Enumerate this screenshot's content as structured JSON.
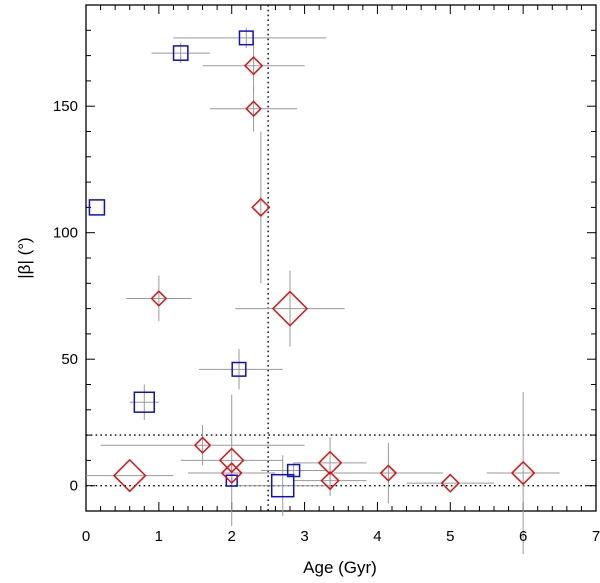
{
  "chart_data": {
    "type": "scatter",
    "xlabel": "Age  (Gyr)",
    "ylabel": "|β|  (°)",
    "xlim": [
      0,
      7
    ],
    "ylim": [
      -10,
      190
    ],
    "xticks": [
      0,
      1,
      2,
      3,
      4,
      5,
      6,
      7
    ],
    "yticks": [
      0,
      50,
      100,
      150
    ],
    "grid": false,
    "colors": {
      "squares": "#1010c8",
      "diamonds": "#dd1111",
      "errorbars": "#9a9a9a"
    },
    "reference_lines": {
      "vertical_x": [
        2.5
      ],
      "horizontal_y": [
        0,
        20
      ]
    },
    "series": [
      {
        "marker": "square",
        "points": [
          {
            "x": 1.3,
            "y": 171,
            "xerr": 0.4,
            "yerr": 4,
            "size": 0.45
          },
          {
            "x": 2.2,
            "y": 177,
            "xerr": [
              1.0,
              1.1
            ],
            "yerr": 4,
            "size": 0.4
          },
          {
            "x": 0.15,
            "y": 110,
            "xerr": 0,
            "yerr": 0,
            "size": 0.5
          },
          {
            "x": 2.1,
            "y": 46,
            "xerr": [
              0.55,
              0.6
            ],
            "yerr": 8,
            "size": 0.4
          },
          {
            "x": 0.8,
            "y": 33,
            "xerr": 0.2,
            "yerr": 7,
            "size": 0.85
          },
          {
            "x": 2.0,
            "y": 2,
            "xerr": 0,
            "yerr": 1,
            "size": 0.2
          },
          {
            "x": 2.85,
            "y": 6,
            "xerr": 0.45,
            "yerr": 3,
            "size": 0.28
          },
          {
            "x": 2.7,
            "y": 0,
            "xerr": 0.65,
            "yerr": 12,
            "size": 1.0
          }
        ]
      },
      {
        "marker": "diamond",
        "points": [
          {
            "x": 2.3,
            "y": 166,
            "xerr": 0.7,
            "yerr": 10,
            "size": 0.35
          },
          {
            "x": 2.3,
            "y": 149,
            "xerr": 0.6,
            "yerr": 9,
            "size": 0.25
          },
          {
            "x": 2.4,
            "y": 110,
            "xerr": 0,
            "yerr": [
              30,
              30
            ],
            "size": 0.35
          },
          {
            "x": 1.0,
            "y": 74,
            "xerr": 0.45,
            "yerr": 9,
            "size": 0.25
          },
          {
            "x": 2.8,
            "y": 70,
            "xerr": 0.75,
            "yerr": 15,
            "size": 1.0
          },
          {
            "x": 1.6,
            "y": 16,
            "xerr": 1.4,
            "yerr": 8,
            "size": 0.28
          },
          {
            "x": 2.0,
            "y": 10,
            "xerr": 0.7,
            "yerr": 26,
            "size": 0.6
          },
          {
            "x": 2.0,
            "y": 5,
            "xerr": 0.6,
            "yerr": 4,
            "size": 0.45
          },
          {
            "x": 0.6,
            "y": 4,
            "xerr": 0.6,
            "yerr": 0,
            "size": 0.9
          },
          {
            "x": 3.35,
            "y": 9,
            "xerr": 0.5,
            "yerr": 10,
            "size": 0.55
          },
          {
            "x": 3.35,
            "y": 2,
            "xerr": 0.5,
            "yerr": 6,
            "size": 0.35
          },
          {
            "x": 4.15,
            "y": 5,
            "xerr": 0.75,
            "yerr": 12,
            "size": 0.28
          },
          {
            "x": 5.0,
            "y": 1,
            "xerr": 0.6,
            "yerr": 0,
            "size": 0.35
          },
          {
            "x": 6.0,
            "y": 5,
            "xerr": 0.5,
            "yerr": 32,
            "size": 0.55
          }
        ]
      }
    ]
  }
}
